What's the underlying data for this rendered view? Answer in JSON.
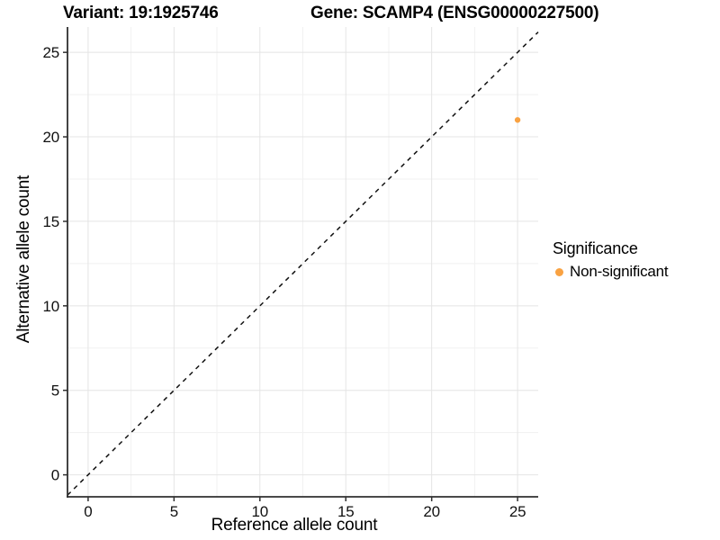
{
  "titles": {
    "variant": "Variant: 19:1925746",
    "gene": "Gene: SCAMP4 (ENSG00000227500)"
  },
  "chart_data": {
    "type": "scatter",
    "title_left": "Variant: 19:1925746",
    "title_right": "Gene: SCAMP4 (ENSG00000227500)",
    "xlabel": "Reference allele count",
    "ylabel": "Alternative allele count",
    "xlim": [
      -1.2,
      26.2
    ],
    "ylim": [
      -1.3,
      26.5
    ],
    "xticks": [
      0,
      5,
      10,
      15,
      20,
      25
    ],
    "yticks": [
      0,
      5,
      10,
      15,
      20,
      25
    ],
    "x_minor_ticks": [
      2.5,
      7.5,
      12.5,
      17.5,
      22.5
    ],
    "y_minor_ticks": [
      2.5,
      7.5,
      12.5,
      17.5,
      22.5
    ],
    "grid": "major and minor gridlines on, white panel background",
    "identity_line": {
      "slope": 1,
      "intercept": 0,
      "style": "dashed",
      "color": "#111111"
    },
    "series": [
      {
        "name": "Non-significant",
        "color": "#F9A242",
        "points": [
          {
            "x": 25,
            "y": 21
          }
        ]
      }
    ],
    "legend": {
      "title": "Significance",
      "position": "right",
      "entries": [
        {
          "label": "Non-significant",
          "color": "#F9A242"
        }
      ]
    }
  },
  "colors": {
    "background": "#ffffff",
    "axis_line": "#2f2f2f",
    "tick_mark": "#2f2f2f",
    "grid_major": "#e4e4e4",
    "grid_minor": "#f1f1f1",
    "text": "#111111",
    "point_orange": "#F9A242"
  }
}
